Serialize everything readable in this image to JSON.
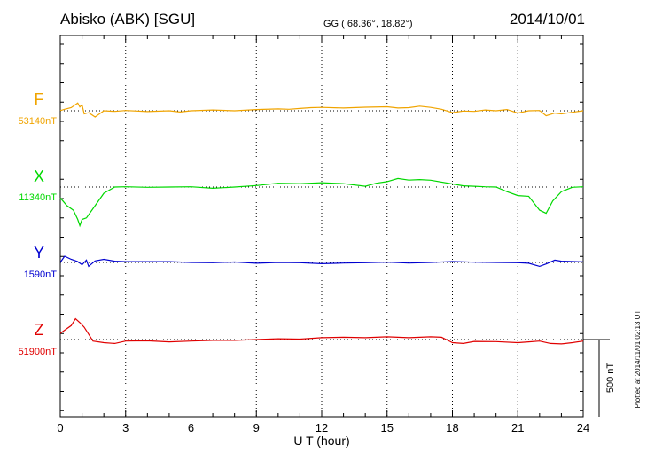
{
  "header": {
    "station": "Abisko (ABK)  [SGU]",
    "coords": "GG ( 68.36°,  18.82°)",
    "date": "2014/10/01"
  },
  "footer": {
    "plotted_note": "Plotted at 2014/11/01 02:13 UT",
    "scale_label": "500 nT"
  },
  "colors": {
    "F": "#f0a400",
    "X": "#00d800",
    "Y": "#0000d0",
    "Z": "#e00000",
    "axis": "#000000"
  },
  "chart_data": {
    "type": "line",
    "title": "Abisko (ABK)  [SGU]",
    "xlabel": "U T (hour)",
    "xlim": [
      0,
      24
    ],
    "x_ticks": [
      0,
      3,
      6,
      9,
      12,
      15,
      18,
      21,
      24
    ],
    "grid": true,
    "scale_bar_nT": 500,
    "series": [
      {
        "name": "F",
        "baseline_label": "53140nT",
        "baseline": 53140,
        "points": [
          [
            0,
            53141
          ],
          [
            0.2,
            53150
          ],
          [
            0.5,
            53160
          ],
          [
            0.8,
            53190
          ],
          [
            0.9,
            53165
          ],
          [
            1.0,
            53178
          ],
          [
            1.1,
            53120
          ],
          [
            1.3,
            53128
          ],
          [
            1.6,
            53100
          ],
          [
            2.0,
            53140
          ],
          [
            2.5,
            53136
          ],
          [
            3,
            53142
          ],
          [
            4,
            53135
          ],
          [
            5,
            53140
          ],
          [
            5.5,
            53132
          ],
          [
            6,
            53140
          ],
          [
            7,
            53145
          ],
          [
            8,
            53140
          ],
          [
            9,
            53148
          ],
          [
            10,
            53152
          ],
          [
            10.5,
            53150
          ],
          [
            11,
            53155
          ],
          [
            11.5,
            53160
          ],
          [
            12,
            53162
          ],
          [
            13,
            53158
          ],
          [
            14,
            53163
          ],
          [
            15,
            53166
          ],
          [
            15.5,
            53158
          ],
          [
            16,
            53160
          ],
          [
            16.5,
            53170
          ],
          [
            17,
            53162
          ],
          [
            17.5,
            53150
          ],
          [
            18,
            53128
          ],
          [
            18.5,
            53138
          ],
          [
            19,
            53136
          ],
          [
            19.5,
            53145
          ],
          [
            20,
            53140
          ],
          [
            20.5,
            53148
          ],
          [
            21,
            53125
          ],
          [
            21.5,
            53140
          ],
          [
            22,
            53142
          ],
          [
            22.3,
            53108
          ],
          [
            22.7,
            53125
          ],
          [
            23,
            53120
          ],
          [
            23.5,
            53130
          ],
          [
            24,
            53140
          ]
        ]
      },
      {
        "name": "X",
        "baseline_label": "11340nT",
        "baseline": 11340,
        "points": [
          [
            0,
            11270
          ],
          [
            0.3,
            11220
          ],
          [
            0.6,
            11190
          ],
          [
            0.8,
            11130
          ],
          [
            0.9,
            11090
          ],
          [
            1.0,
            11130
          ],
          [
            1.2,
            11140
          ],
          [
            1.5,
            11200
          ],
          [
            2.0,
            11300
          ],
          [
            2.5,
            11340
          ],
          [
            3,
            11342
          ],
          [
            4,
            11338
          ],
          [
            5,
            11340
          ],
          [
            6,
            11342
          ],
          [
            7,
            11332
          ],
          [
            8,
            11340
          ],
          [
            9,
            11350
          ],
          [
            10,
            11365
          ],
          [
            11,
            11362
          ],
          [
            12,
            11368
          ],
          [
            13,
            11362
          ],
          [
            14,
            11345
          ],
          [
            14.5,
            11365
          ],
          [
            15,
            11375
          ],
          [
            15.5,
            11395
          ],
          [
            16,
            11385
          ],
          [
            16.5,
            11388
          ],
          [
            17,
            11384
          ],
          [
            18,
            11360
          ],
          [
            18.5,
            11348
          ],
          [
            19,
            11345
          ],
          [
            19.5,
            11342
          ],
          [
            20,
            11340
          ],
          [
            20.5,
            11310
          ],
          [
            21,
            11285
          ],
          [
            21.5,
            11280
          ],
          [
            22,
            11190
          ],
          [
            22.3,
            11170
          ],
          [
            22.6,
            11250
          ],
          [
            23,
            11310
          ],
          [
            23.5,
            11338
          ],
          [
            24,
            11342
          ]
        ]
      },
      {
        "name": "Y",
        "baseline_label": "1590nT",
        "baseline": 1590,
        "points": [
          [
            0,
            1590
          ],
          [
            0.2,
            1630
          ],
          [
            0.5,
            1610
          ],
          [
            0.8,
            1595
          ],
          [
            1.0,
            1575
          ],
          [
            1.2,
            1605
          ],
          [
            1.3,
            1565
          ],
          [
            1.6,
            1600
          ],
          [
            2,
            1610
          ],
          [
            2.5,
            1598
          ],
          [
            3,
            1595
          ],
          [
            4,
            1595
          ],
          [
            5,
            1595
          ],
          [
            6,
            1590
          ],
          [
            7,
            1588
          ],
          [
            8,
            1593
          ],
          [
            9,
            1585
          ],
          [
            10,
            1590
          ],
          [
            11,
            1588
          ],
          [
            12,
            1582
          ],
          [
            13,
            1586
          ],
          [
            14,
            1588
          ],
          [
            15,
            1592
          ],
          [
            16,
            1586
          ],
          [
            17,
            1590
          ],
          [
            18,
            1596
          ],
          [
            19,
            1592
          ],
          [
            20,
            1590
          ],
          [
            21,
            1588
          ],
          [
            21.5,
            1585
          ],
          [
            22,
            1565
          ],
          [
            22.3,
            1580
          ],
          [
            22.7,
            1605
          ],
          [
            23,
            1598
          ],
          [
            24,
            1594
          ]
        ]
      },
      {
        "name": "Z",
        "baseline_label": "51900nT",
        "baseline": 51900,
        "points": [
          [
            0,
            51940
          ],
          [
            0.3,
            51970
          ],
          [
            0.5,
            51990
          ],
          [
            0.7,
            52035
          ],
          [
            0.9,
            52010
          ],
          [
            1.1,
            51980
          ],
          [
            1.3,
            51935
          ],
          [
            1.5,
            51890
          ],
          [
            2,
            51880
          ],
          [
            2.5,
            51875
          ],
          [
            3,
            51890
          ],
          [
            4,
            51892
          ],
          [
            5,
            51885
          ],
          [
            6,
            51890
          ],
          [
            7,
            51895
          ],
          [
            8,
            51895
          ],
          [
            9,
            51900
          ],
          [
            10,
            51905
          ],
          [
            11,
            51903
          ],
          [
            12,
            51912
          ],
          [
            13,
            51915
          ],
          [
            14,
            51912
          ],
          [
            15,
            51918
          ],
          [
            16,
            51912
          ],
          [
            17,
            51918
          ],
          [
            17.5,
            51915
          ],
          [
            18,
            51880
          ],
          [
            18.5,
            51875
          ],
          [
            19,
            51888
          ],
          [
            20,
            51887
          ],
          [
            21,
            51880
          ],
          [
            21.5,
            51885
          ],
          [
            22,
            51890
          ],
          [
            22.5,
            51875
          ],
          [
            23,
            51872
          ],
          [
            23.5,
            51880
          ],
          [
            24,
            51890
          ]
        ]
      }
    ]
  }
}
